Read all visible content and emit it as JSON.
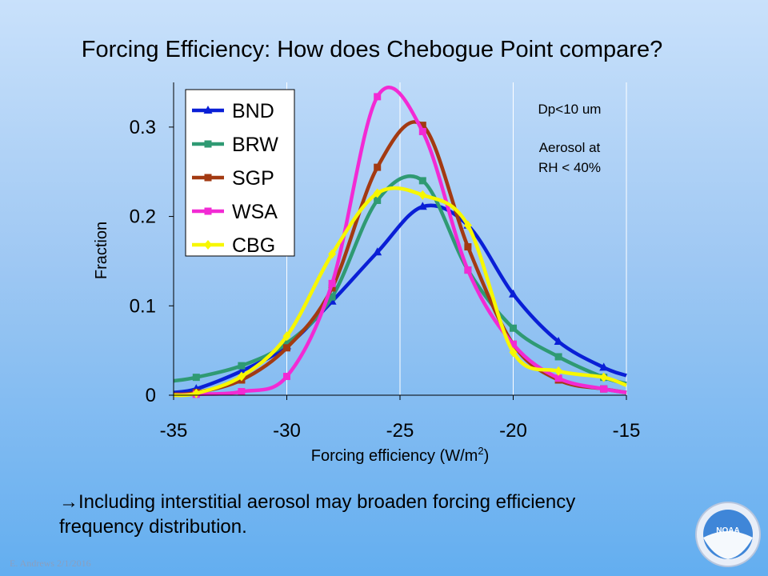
{
  "slide": {
    "title": "Forcing Efficiency: How does Chebogue Point compare?",
    "note_line1": "Including interstitial aerosol may broaden forcing efficiency",
    "note_line2": "frequency distribution.",
    "arrow": "→",
    "footer": "E. Andrews   2/1/2016",
    "logo_text": "NOAA",
    "logo_icon": "noaa-logo-icon"
  },
  "chart_data": {
    "type": "line",
    "xlabel": "Forcing efficiency (W/m",
    "xlabel_sup": "2",
    "xlabel_end": ")",
    "ylabel": "Fraction",
    "xlim": [
      -35,
      -15
    ],
    "ylim": [
      0,
      0.35
    ],
    "xticks": [
      -35,
      -30,
      -25,
      -20,
      -15
    ],
    "yticks": [
      0,
      0.1,
      0.2,
      0.3
    ],
    "ytick_labels": [
      "0",
      "0.1",
      "0.2",
      "0.3"
    ],
    "grid": "vertical",
    "legend_position": "top-left",
    "annotations": [
      "Dp<10 um",
      "Aerosol at",
      "RH < 40%"
    ],
    "series": [
      {
        "name": "BND",
        "color": "#0a1fd6",
        "marker": "triangle",
        "x": [
          -35,
          -34,
          -32,
          -30,
          -28,
          -26,
          -24,
          -22,
          -20,
          -18,
          -16,
          -15
        ],
        "y": [
          0.003,
          0.007,
          0.027,
          0.055,
          0.105,
          0.16,
          0.211,
          0.19,
          0.113,
          0.06,
          0.031,
          0.022
        ]
      },
      {
        "name": "BRW",
        "color": "#2f9a73",
        "marker": "square",
        "x": [
          -35,
          -34,
          -32,
          -30,
          -28,
          -26,
          -24,
          -22,
          -20,
          -18,
          -16,
          -15
        ],
        "y": [
          0.016,
          0.02,
          0.033,
          0.058,
          0.11,
          0.218,
          0.24,
          0.14,
          0.075,
          0.043,
          0.02,
          0.013
        ]
      },
      {
        "name": "SGP",
        "color": "#a33a12",
        "marker": "square",
        "x": [
          -35,
          -34,
          -32,
          -30,
          -28,
          -26,
          -24,
          -22,
          -20,
          -18,
          -16,
          -15
        ],
        "y": [
          0.001,
          0.003,
          0.017,
          0.053,
          0.12,
          0.255,
          0.302,
          0.166,
          0.057,
          0.017,
          0.007,
          0.003
        ]
      },
      {
        "name": "WSA",
        "color": "#f22ad4",
        "marker": "square",
        "x": [
          -35,
          -34,
          -32,
          -30,
          -28,
          -26,
          -24,
          -22,
          -20,
          -18,
          -16,
          -15
        ],
        "y": [
          0.0,
          0.001,
          0.004,
          0.021,
          0.125,
          0.334,
          0.295,
          0.14,
          0.057,
          0.019,
          0.007,
          0.003
        ]
      },
      {
        "name": "CBG",
        "color": "#f7f700",
        "marker": "diamond",
        "x": [
          -35,
          -34,
          -32,
          -30,
          -28,
          -26,
          -24,
          -22,
          -20,
          -18,
          -16,
          -15
        ],
        "y": [
          0.0,
          0.002,
          0.021,
          0.066,
          0.158,
          0.226,
          0.224,
          0.19,
          0.048,
          0.027,
          0.02,
          0.011
        ]
      }
    ]
  }
}
